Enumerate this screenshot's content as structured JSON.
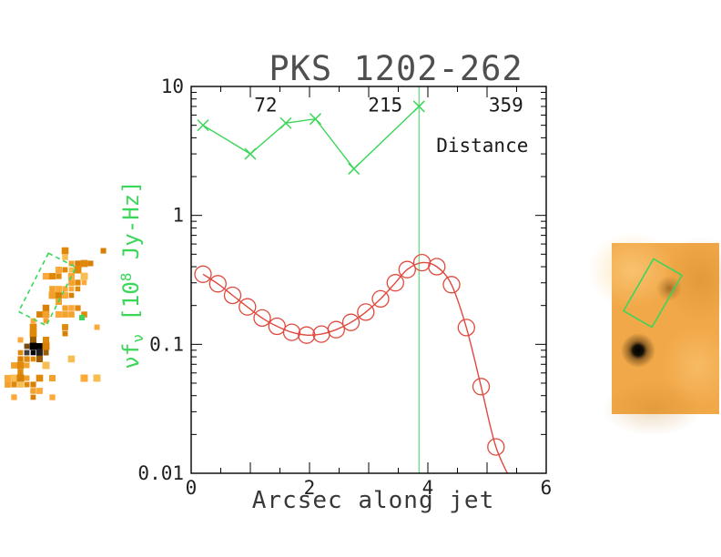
{
  "figure": {
    "colors": {
      "green": "#3bd65a",
      "red": "#e0493e",
      "axis": "#000000",
      "title_gray": "#4f4f4f"
    }
  },
  "chart_data": {
    "type": "line",
    "title": "PKS 1202-262",
    "xlabel": "Arcsec along jet",
    "ylabel": "nu f_nu [10^8 Jy-Hz]",
    "ylabel_parts": {
      "p1": "νf",
      "sub": "ν",
      "p2": " [10",
      "exp": "8",
      "p3": " Jy-Hz]"
    },
    "xscale": "linear",
    "yscale": "log",
    "xlim": [
      0,
      6
    ],
    "ylim": [
      0.01,
      10
    ],
    "x_tick_labels": [
      "0",
      "2",
      "4",
      "6"
    ],
    "x_tick_values": [
      0,
      2,
      4,
      6
    ],
    "y_tick_labels": [
      "10",
      "1",
      "0.1",
      "0.01"
    ],
    "y_tick_values": [
      10,
      1,
      0.1,
      0.01
    ],
    "vline_x": 3.85,
    "grid": false,
    "annotations": [
      {
        "text": "72",
        "x": 1.26,
        "y": 6.4
      },
      {
        "text": "215",
        "x": 3.28,
        "y": 6.4
      },
      {
        "text": "359",
        "x": 5.32,
        "y": 6.4
      },
      {
        "text": "Distance",
        "x": 4.92,
        "y": 3.1
      }
    ],
    "series": [
      {
        "name": "green-cross-series",
        "marker": "x",
        "color": "#3bd65a",
        "x": [
          0.2,
          1.0,
          1.6,
          2.1,
          2.75,
          3.85
        ],
        "y": [
          5.0,
          3.0,
          5.2,
          5.6,
          2.3,
          7.0
        ]
      },
      {
        "name": "red-circle-series",
        "marker": "o",
        "color": "#e0493e",
        "x": [
          0.2,
          0.45,
          0.7,
          0.95,
          1.2,
          1.45,
          1.7,
          1.95,
          2.2,
          2.45,
          2.7,
          2.95,
          3.2,
          3.45,
          3.65,
          3.9,
          4.15,
          4.4,
          4.65,
          4.9,
          5.15
        ],
        "y": [
          0.35,
          0.295,
          0.24,
          0.195,
          0.16,
          0.138,
          0.124,
          0.118,
          0.12,
          0.13,
          0.148,
          0.178,
          0.225,
          0.3,
          0.38,
          0.43,
          0.4,
          0.29,
          0.135,
          0.047,
          0.016
        ],
        "line_tail": {
          "x": 5.45,
          "y": 0.008
        }
      }
    ]
  },
  "cutouts": {
    "left": {
      "type": "pixelated-image",
      "palette": [
        "#f2a12c",
        "#e08908",
        "#f6bd52",
        "#d87f05",
        "#fca93a"
      ],
      "dark": [
        "#000000",
        "#1f1f1f",
        "#3d3d3d"
      ],
      "aperture_color": "#3bd65a",
      "aperture_style": "dashed"
    },
    "right": {
      "type": "smoothed-image",
      "base_color": "#f1a848",
      "aperture_color": "#3bd65a",
      "aperture_style": "solid"
    }
  }
}
